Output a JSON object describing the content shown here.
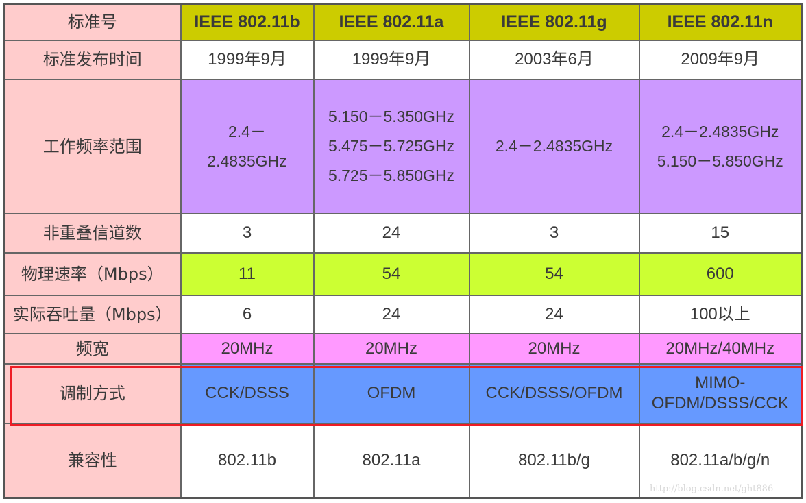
{
  "header": {
    "label": "标准号",
    "cols": [
      "IEEE 802.11b",
      "IEEE 802.11a",
      "IEEE 802.11g",
      "IEEE 802.11n"
    ]
  },
  "rows": [
    {
      "label": "标准发布时间",
      "values": [
        [
          "1999年9月"
        ],
        [
          "1999年9月"
        ],
        [
          "2003年6月"
        ],
        [
          "2009年9月"
        ]
      ]
    },
    {
      "label": "工作频率范围",
      "values": [
        [
          "2.4－",
          "2.4835GHz"
        ],
        [
          "5.150－5.350GHz",
          "5.475－5.725GHz",
          "5.725－5.850GHz"
        ],
        [
          "2.4－2.4835GHz"
        ],
        [
          "2.4－2.4835GHz",
          "5.150－5.850GHz"
        ]
      ]
    },
    {
      "label": "非重叠信道数",
      "values": [
        [
          "3"
        ],
        [
          "24"
        ],
        [
          "3"
        ],
        [
          "15"
        ]
      ]
    },
    {
      "label": "物理速率（Mbps）",
      "values": [
        [
          "11"
        ],
        [
          "54"
        ],
        [
          "54"
        ],
        [
          "600"
        ]
      ]
    },
    {
      "label": "实际吞吐量（Mbps）",
      "values": [
        [
          "6"
        ],
        [
          "24"
        ],
        [
          "24"
        ],
        [
          "100以上"
        ]
      ]
    },
    {
      "label": "频宽",
      "values": [
        [
          "20MHz"
        ],
        [
          "20MHz"
        ],
        [
          "20MHz"
        ],
        [
          "20MHz/40MHz"
        ]
      ]
    },
    {
      "label": "调制方式",
      "values": [
        [
          "CCK/DSSS"
        ],
        [
          "OFDM"
        ],
        [
          "CCK/DSSS/OFDM"
        ],
        [
          "MIMO-",
          "OFDM/DSSS/CCK"
        ]
      ]
    },
    {
      "label": "兼容性",
      "values": [
        [
          "802.11b"
        ],
        [
          "802.11a"
        ],
        [
          "802.11b/g"
        ],
        [
          "802.11a/b/g/n"
        ]
      ]
    }
  ],
  "watermark": "http://blog.csdn.net/ght886",
  "colors": {
    "label": "#ffcccc",
    "header": "#cccc00",
    "purple": "#cc99ff",
    "lime": "#ccff33",
    "magenta": "#ff99ff",
    "blue": "#6699ff",
    "highlight": "#ee1c25"
  }
}
